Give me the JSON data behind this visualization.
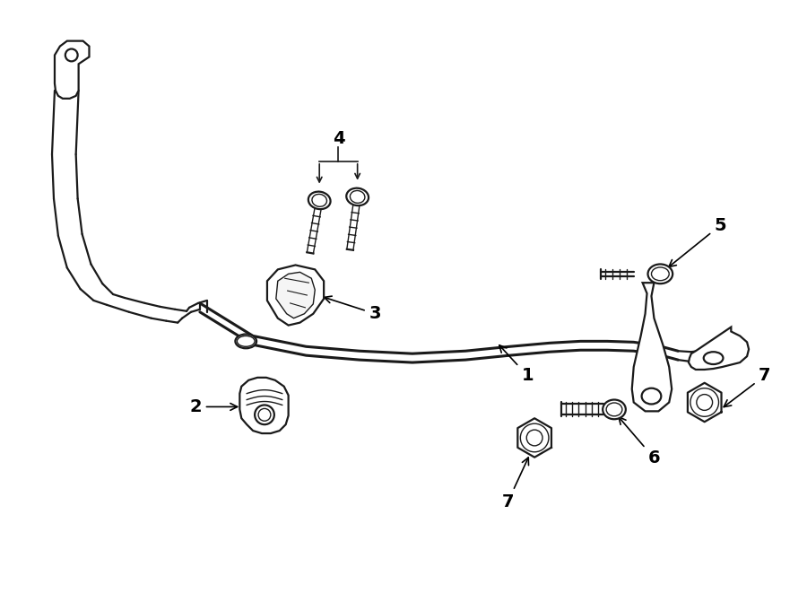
{
  "bg_color": "#ffffff",
  "line_color": "#1a1a1a",
  "figsize": [
    9.0,
    6.61
  ],
  "dpi": 100,
  "lw_bar": 2.2,
  "lw_part": 1.6,
  "lw_thin": 1.0
}
